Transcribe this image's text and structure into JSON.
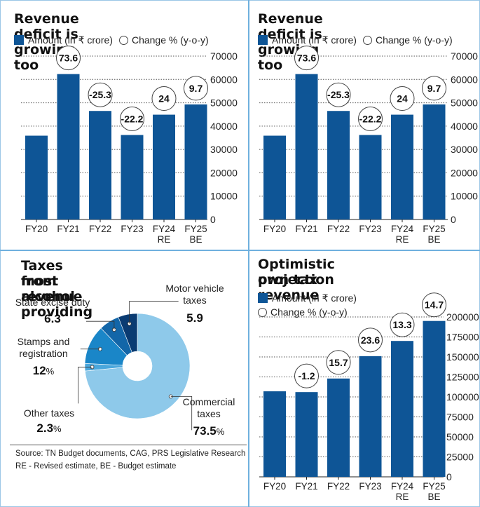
{
  "chart_data": [
    {
      "type": "bar",
      "title": "Revenue deficit is growing too",
      "legend": {
        "bar_label": "Amount (in ₹ crore)",
        "change_label": "Change % (y-o-y)"
      },
      "categories": [
        [
          "FY20"
        ],
        [
          "FY21"
        ],
        [
          "FY22"
        ],
        [
          "FY23"
        ],
        [
          "FY24",
          "RE"
        ],
        [
          "FY25",
          "BE"
        ]
      ],
      "series": [
        {
          "name": "Amount (in ₹ crore)",
          "values": [
            35900,
            62300,
            46500,
            36200,
            44900,
            49300
          ]
        }
      ],
      "changes": [
        "",
        "73.6",
        "-25.3",
        "-22.2",
        "24",
        "9.7"
      ],
      "ylim": [
        0,
        70000
      ],
      "yticks": [
        0,
        10000,
        20000,
        30000,
        40000,
        50000,
        60000,
        70000
      ],
      "grid": "dotted horizontal",
      "axis_side": "right",
      "bar_color": "#0e5596"
    },
    {
      "type": "bar",
      "title": "Revenue deficit is growing too",
      "legend": {
        "bar_label": "Amount (in ₹ crore)",
        "change_label": "Change % (y-o-y)"
      },
      "categories": [
        [
          "FY20"
        ],
        [
          "FY21"
        ],
        [
          "FY22"
        ],
        [
          "FY23"
        ],
        [
          "FY24",
          "RE"
        ],
        [
          "FY25",
          "BE"
        ]
      ],
      "series": [
        {
          "name": "Amount (in ₹ crore)",
          "values": [
            35900,
            62300,
            46500,
            36200,
            44900,
            49300
          ]
        }
      ],
      "changes": [
        "",
        "73.6",
        "-25.3",
        "-22.2",
        "24",
        "9.7"
      ],
      "ylim": [
        0,
        70000
      ],
      "yticks": [
        0,
        10000,
        20000,
        30000,
        40000,
        50000,
        60000,
        70000
      ],
      "grid": "dotted horizontal",
      "axis_side": "right",
      "bar_color": "#0e5596"
    },
    {
      "type": "pie",
      "title": "Taxes from alcohol providing most revenue",
      "slices": [
        {
          "label": "Commercial taxes",
          "value": 73.5,
          "display": "73.5",
          "suffix": "%",
          "color": "#8ec9ea"
        },
        {
          "label": "Other taxes",
          "value": 2.3,
          "display": "2.3",
          "suffix": "%",
          "color": "#4ba7dc"
        },
        {
          "label": "Stamps and registration",
          "value": 12,
          "display": "12",
          "suffix": "%",
          "color": "#1a86c8"
        },
        {
          "label": "State excise duty",
          "value": 6.3,
          "display": "6.3",
          "suffix": "",
          "color": "#1366a8"
        },
        {
          "label": "Motor vehicle taxes",
          "value": 5.9,
          "display": "5.9",
          "suffix": "",
          "color": "#0a3b72"
        }
      ],
      "label_lines": {
        "commercial": [
          "Commercial",
          "taxes"
        ],
        "other": [
          "Other taxes"
        ],
        "stamps": [
          "Stamps and",
          "registration"
        ],
        "excise": [
          "State excise duty"
        ],
        "motor": [
          "Motor vehicle",
          "taxes"
        ]
      }
    },
    {
      "type": "bar",
      "title": "Optimistic own tax revenue projection",
      "legend": {
        "bar_label": "Amount (in ₹ crore)",
        "change_label": "Change % (y-o-y)"
      },
      "categories": [
        [
          "FY20"
        ],
        [
          "FY21"
        ],
        [
          "FY22"
        ],
        [
          "FY23"
        ],
        [
          "FY24",
          "RE"
        ],
        [
          "FY25",
          "BE"
        ]
      ],
      "series": [
        {
          "name": "Amount (in ₹ crore)",
          "values": [
            107000,
            106000,
            123000,
            151000,
            170000,
            195000
          ]
        }
      ],
      "changes": [
        "",
        "-1.2",
        "15.7",
        "23.6",
        "13.3",
        "14.7"
      ],
      "ylim": [
        0,
        200000
      ],
      "yticks": [
        0,
        25000,
        50000,
        75000,
        100000,
        125000,
        150000,
        175000,
        200000
      ],
      "grid": "dotted horizontal",
      "axis_side": "right",
      "bar_color": "#0e5596"
    }
  ],
  "titles": {
    "p1": "Revenue deficit is growing too",
    "p2": "Revenue deficit is growing too",
    "p3_line1": "Taxes from alcohol providing",
    "p3_line2": "most revenue",
    "p4_line1": "Optimistic own tax revenue",
    "p4_line2": "projection"
  },
  "legend_text": {
    "amount": "Amount (in ₹ crore)",
    "change": "Change % (y-o-y)"
  },
  "source": {
    "line1": "Source: TN Budget documents, CAG, PRS Legislative Research",
    "line2": "RE - Revised estimate, BE - Budget estimate"
  }
}
